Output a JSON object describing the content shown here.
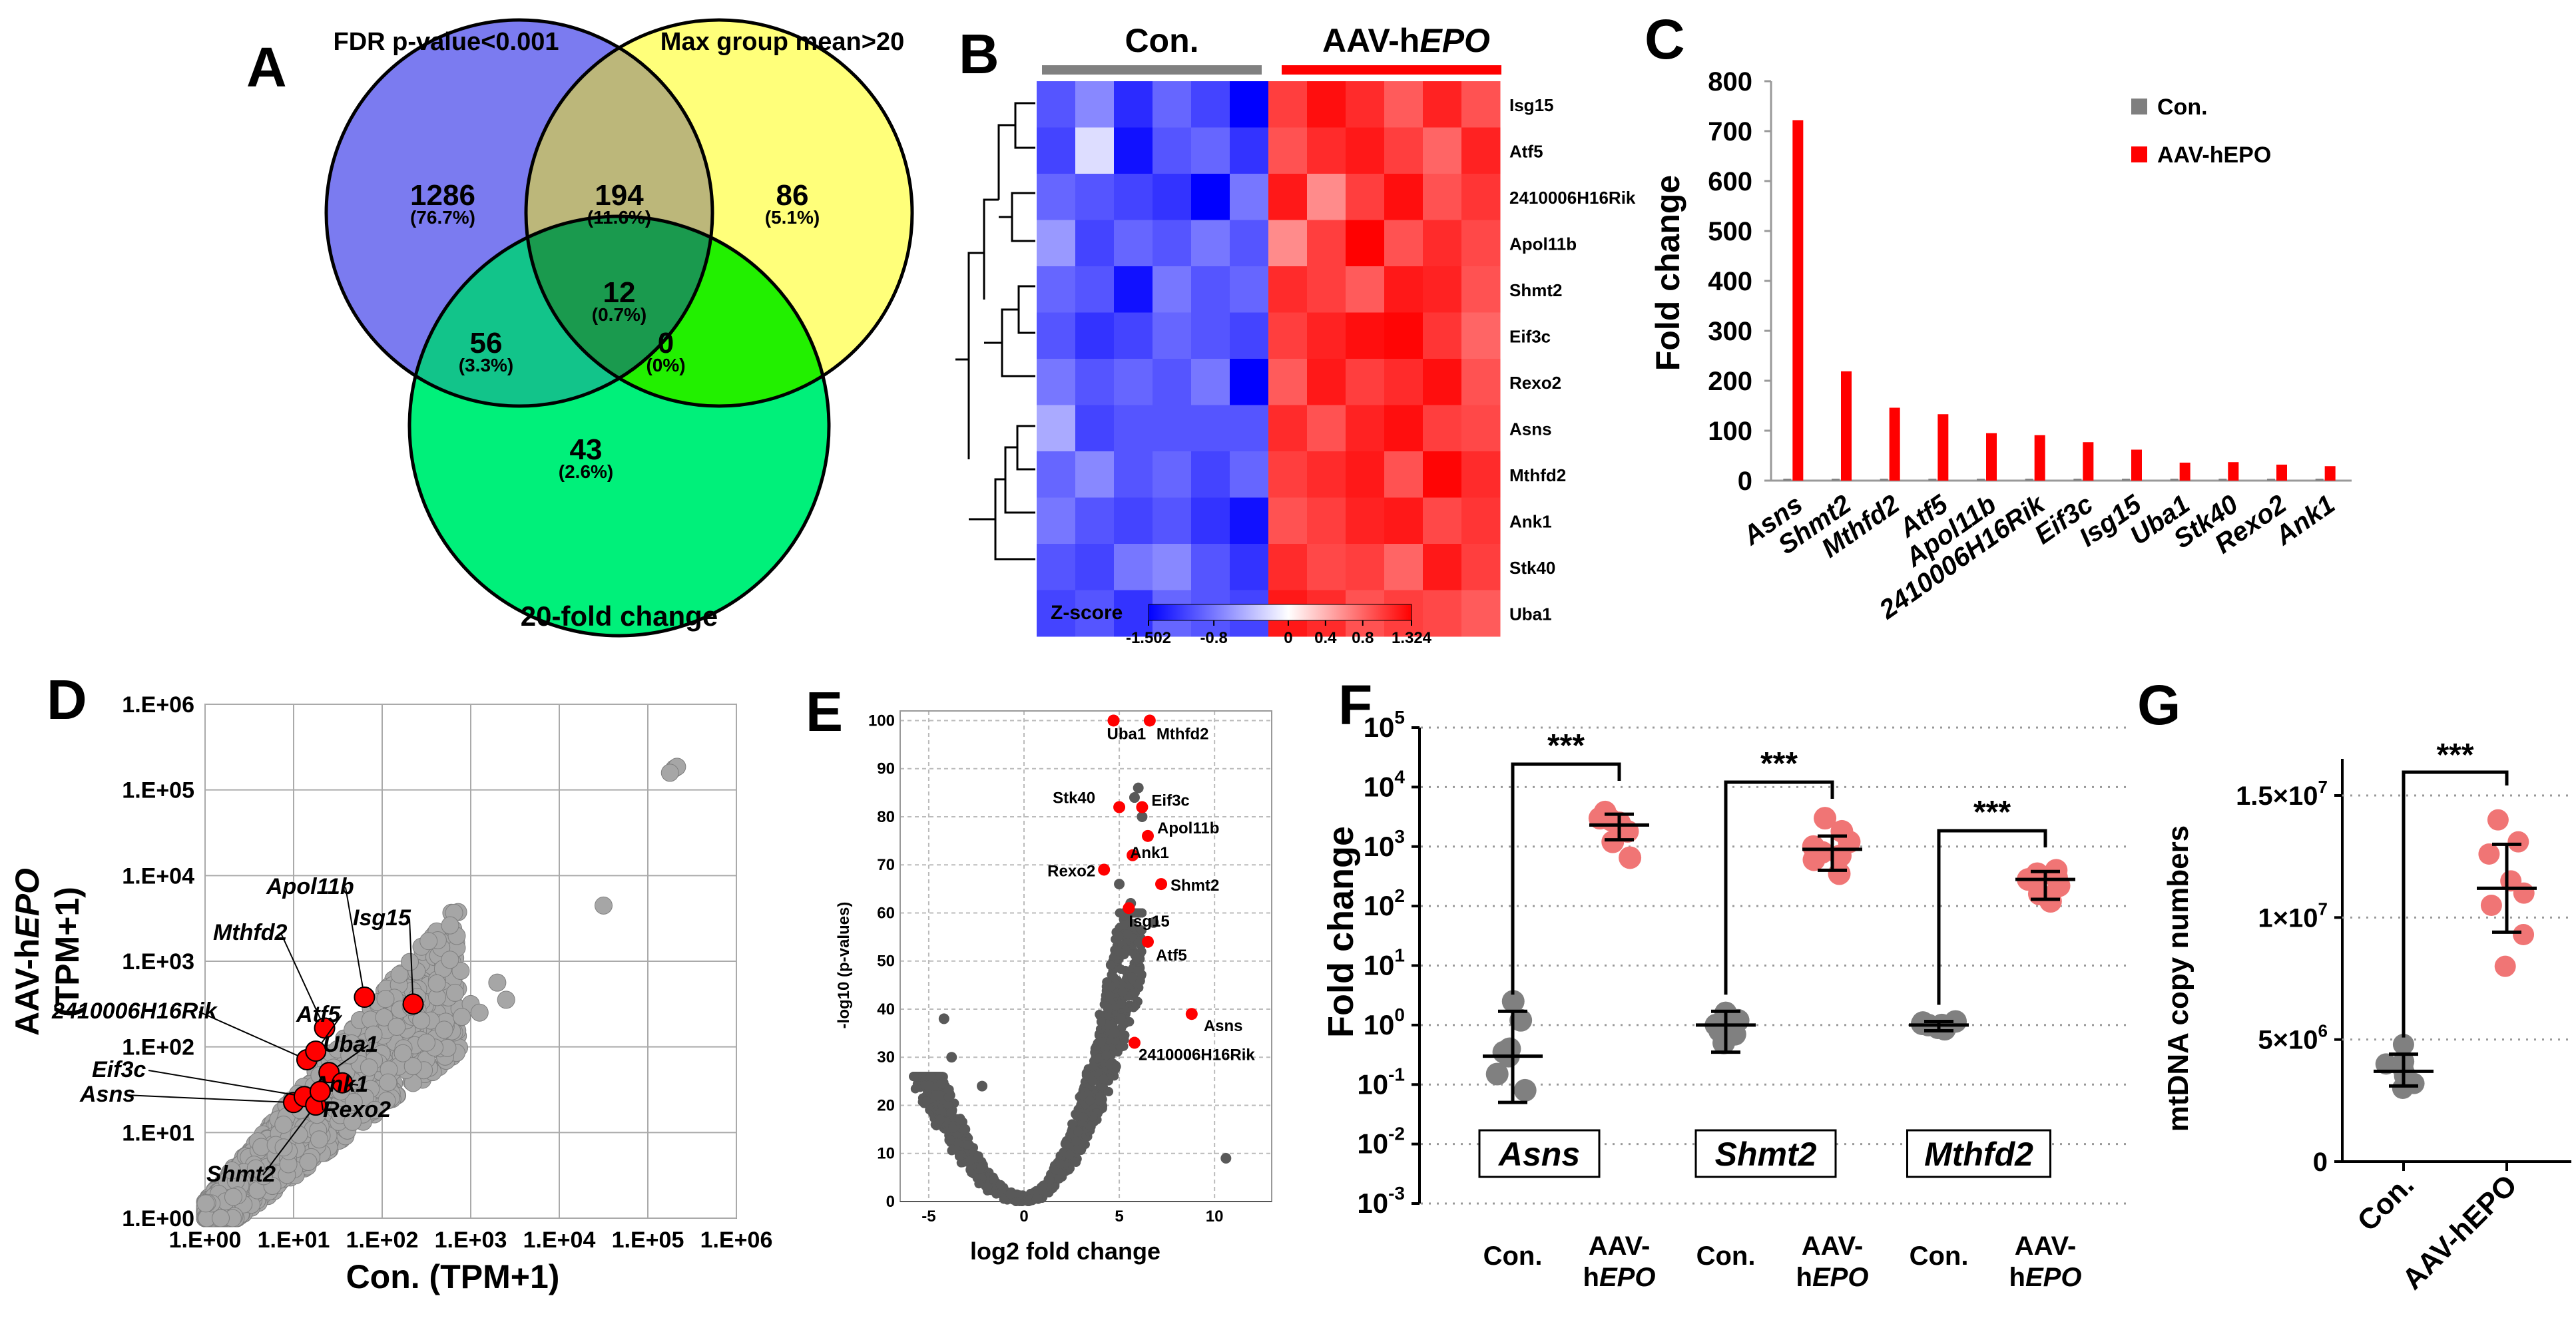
{
  "panels": {
    "A": "A",
    "B": "B",
    "C": "C",
    "D": "D",
    "E": "E",
    "F": "F",
    "G": "G"
  },
  "venn": {
    "set_labels": {
      "top_left": "FDR p-value<0.001",
      "top_right": "Max group mean>20",
      "bottom": "20-fold change"
    },
    "regions": [
      {
        "id": "fdr_only",
        "count": "1286",
        "pct": "(76.7%)"
      },
      {
        "id": "fdr_max",
        "count": "194",
        "pct": "(11.6%)"
      },
      {
        "id": "max_only",
        "count": "86",
        "pct": "(5.1%)"
      },
      {
        "id": "all_three",
        "count": "12",
        "pct": "(0.7%)"
      },
      {
        "id": "fdr_fold",
        "count": "56",
        "pct": "(3.3%)"
      },
      {
        "id": "max_fold",
        "count": "0",
        "pct": "(0%)"
      },
      {
        "id": "fold_only",
        "count": "43",
        "pct": "(2.6%)"
      }
    ],
    "colors": {
      "fdr": "#7b7bf0",
      "max": "#ffff7a",
      "fold": "#00f07a",
      "fdr_max": "#bcb77a",
      "fdr_fold": "#12c48a",
      "max_fold": "#22f000",
      "all": "#1a9a4e"
    }
  },
  "heatmap": {
    "group_labels": {
      "con": "Con.",
      "aav_prefix": "AAV-h",
      "aav_italic": "EPO"
    },
    "genes": [
      "Isg15",
      "Atf5",
      "2410006H16Rik",
      "Apol11b",
      "Shmt2",
      "Eif3c",
      "Rexo2",
      "Asns",
      "Mthfd2",
      "Ank1",
      "Stk40",
      "Uba1"
    ],
    "zscore_title": "Z-score",
    "zscore_ticks": [
      "-1.502",
      "-0.8",
      "0",
      "0.4",
      "0.8",
      "1.324"
    ],
    "zscore_tick_values": [
      -1.502,
      -0.8,
      0,
      0.4,
      0.8,
      1.324
    ],
    "zscore_range": [
      -1.502,
      1.324
    ],
    "values": [
      [
        -1.0,
        -0.7,
        -1.25,
        -0.9,
        -1.1,
        -1.5,
        1.0,
        1.25,
        1.1,
        0.85,
        1.15,
        0.9
      ],
      [
        -1.1,
        -0.2,
        -1.4,
        -1.0,
        -0.9,
        -1.2,
        0.9,
        1.1,
        1.2,
        1.0,
        0.8,
        1.15
      ],
      [
        -0.9,
        -1.0,
        -1.1,
        -1.2,
        -1.5,
        -0.8,
        1.2,
        0.6,
        1.0,
        1.25,
        0.9,
        1.05
      ],
      [
        -0.6,
        -1.1,
        -0.9,
        -1.0,
        -0.8,
        -1.0,
        0.6,
        1.0,
        1.32,
        0.9,
        1.1,
        0.95
      ],
      [
        -0.9,
        -1.0,
        -1.4,
        -0.8,
        -1.0,
        -0.9,
        1.1,
        1.0,
        0.85,
        1.2,
        1.15,
        0.9
      ],
      [
        -1.0,
        -1.2,
        -1.1,
        -0.9,
        -1.0,
        -1.1,
        1.0,
        1.15,
        1.25,
        1.3,
        1.05,
        0.8
      ],
      [
        -0.8,
        -1.0,
        -0.9,
        -1.0,
        -0.8,
        -1.5,
        0.85,
        1.2,
        1.0,
        1.1,
        1.25,
        0.9
      ],
      [
        -0.5,
        -1.1,
        -1.0,
        -1.0,
        -1.0,
        -1.0,
        1.1,
        0.9,
        1.15,
        1.25,
        1.0,
        0.95
      ],
      [
        -0.9,
        -0.7,
        -1.0,
        -0.9,
        -1.1,
        -0.9,
        1.0,
        1.1,
        1.2,
        0.9,
        1.3,
        1.1
      ],
      [
        -0.8,
        -1.0,
        -1.1,
        -1.0,
        -1.2,
        -1.4,
        0.9,
        1.0,
        1.15,
        1.2,
        0.95,
        1.05
      ],
      [
        -1.0,
        -1.1,
        -0.8,
        -0.7,
        -1.0,
        -1.2,
        1.1,
        0.95,
        1.0,
        0.8,
        1.2,
        1.0
      ],
      [
        -1.1,
        -1.0,
        -1.2,
        -0.9,
        -1.0,
        -1.1,
        1.2,
        1.1,
        0.9,
        1.0,
        0.95,
        0.85
      ]
    ]
  },
  "chart_data": [
    {
      "panel": "C",
      "type": "bar",
      "categories": [
        "Asns",
        "Shmt2",
        "Mthfd2",
        "Atf5",
        "Apol11b",
        "2410006H16Rik",
        "Eif3c",
        "Isg15",
        "Uba1",
        "Stk40",
        "Rexo2",
        "Ank1"
      ],
      "series": [
        {
          "name": "Con.",
          "color": "#7f7f7f",
          "values": [
            1,
            1,
            1,
            1,
            1,
            1,
            1,
            1,
            1,
            1,
            1,
            1
          ]
        },
        {
          "name": "AAV-hEPO",
          "color": "#ff0000",
          "values": [
            722,
            219,
            146,
            133,
            95,
            91,
            77,
            62,
            36,
            37,
            32,
            29
          ]
        }
      ],
      "ylabel": "Fold change",
      "ylim": [
        0,
        800
      ],
      "yticks": [
        "0",
        "100",
        "200",
        "300",
        "400",
        "500",
        "600",
        "700",
        "800"
      ],
      "legend": {
        "con": "Con.",
        "aav": "AAV-hEPO"
      }
    },
    {
      "panel": "D",
      "type": "scatter",
      "scale": "log",
      "xlabel": "Con. (TPM+1)",
      "ylabel_prefix": "AAV-h",
      "ylabel_italic": "EPO",
      "ylabel_suffix": "(TPM+1)",
      "ticks": [
        "1.E+00",
        "1.E+01",
        "1.E+02",
        "1.E+03",
        "1.E+04",
        "1.E+05",
        "1.E+06"
      ],
      "grey_points": [
        [
          3.3,
          2.75
        ],
        [
          3.4,
          2.55
        ],
        [
          4.5,
          3.65
        ],
        [
          5.3,
          5.25
        ],
        [
          5.33,
          5.27
        ],
        [
          5.25,
          5.2
        ],
        [
          3.0,
          2.5
        ],
        [
          2.9,
          2.35
        ],
        [
          2.7,
          2.2
        ],
        [
          2.5,
          2.05
        ],
        [
          3.1,
          2.4
        ]
      ],
      "highlight": [
        {
          "label": "Asns",
          "x": 1.0,
          "y": 1.35
        },
        {
          "label": "Eif3c",
          "x": 1.12,
          "y": 1.42
        },
        {
          "label": "2410006H16Rik",
          "x": 1.15,
          "y": 1.85
        },
        {
          "label": "Shmt2",
          "x": 1.25,
          "y": 1.32
        },
        {
          "label": "Mthfd2",
          "x": 1.35,
          "y": 2.22
        },
        {
          "label": "Apol11b",
          "x": 1.8,
          "y": 2.58
        },
        {
          "label": "Isg15",
          "x": 2.35,
          "y": 2.5
        },
        {
          "label": "Atf5",
          "x": 1.25,
          "y": 1.95
        },
        {
          "label": "Uba1",
          "x": 1.4,
          "y": 1.7
        },
        {
          "label": "Ank1",
          "x": 1.55,
          "y": 1.58
        },
        {
          "label": "Rexo2",
          "x": 1.3,
          "y": 1.48
        }
      ]
    },
    {
      "panel": "E",
      "type": "scatter",
      "xlabel": "log2 fold change",
      "ylabel": "-log10 (p-values)",
      "xticks": [
        "-5",
        "0",
        "5",
        "10"
      ],
      "xtick_values": [
        -5,
        0,
        5,
        10
      ],
      "yticks": [
        "0",
        "10",
        "20",
        "30",
        "40",
        "50",
        "60",
        "70",
        "80",
        "90",
        "100"
      ],
      "xlim": [
        -6.5,
        13
      ],
      "ylim": [
        0,
        102
      ],
      "grey_points": [
        [
          -4.2,
          38
        ],
        [
          -3.8,
          30
        ],
        [
          -5.0,
          24
        ],
        [
          -4.5,
          22
        ],
        [
          6.0,
          86
        ],
        [
          5.8,
          84
        ],
        [
          6.2,
          80
        ],
        [
          10.6,
          9
        ],
        [
          5.6,
          62
        ],
        [
          6.8,
          58
        ],
        [
          5.0,
          66
        ],
        [
          -2.2,
          24
        ],
        [
          -3.1,
          15
        ]
      ],
      "highlight": [
        {
          "label": "Uba1",
          "x": 4.7,
          "y": 100
        },
        {
          "label": "Mthfd2",
          "x": 6.6,
          "y": 100
        },
        {
          "label": "Stk40",
          "x": 5.0,
          "y": 82
        },
        {
          "label": "Eif3c",
          "x": 6.2,
          "y": 82
        },
        {
          "label": "Apol11b",
          "x": 6.5,
          "y": 76
        },
        {
          "label": "Ank1",
          "x": 5.7,
          "y": 72
        },
        {
          "label": "Rexo2",
          "x": 4.2,
          "y": 69
        },
        {
          "label": "Shmt2",
          "x": 7.2,
          "y": 66
        },
        {
          "label": "Isg15",
          "x": 5.5,
          "y": 61
        },
        {
          "label": "Atf5",
          "x": 6.5,
          "y": 54
        },
        {
          "label": "Asns",
          "x": 8.8,
          "y": 39
        },
        {
          "label": "2410006H16Rik",
          "x": 5.8,
          "y": 33
        }
      ]
    },
    {
      "panel": "F",
      "type": "scatter",
      "scale": "log",
      "ylabel": "Fold change",
      "yticks_exp": [
        "5",
        "4",
        "3",
        "2",
        "1",
        "0",
        "-1",
        "-2",
        "-3"
      ],
      "ylim_log10": [
        -3,
        5
      ],
      "groups": [
        {
          "gene": "Asns",
          "con": {
            "label": "Con.",
            "mean": 0.3,
            "sd_lo": 0.05,
            "sd_hi": 1.7,
            "points": [
              0.35,
              0.08,
              0.3,
              1.2,
              0.4,
              2.5,
              0.15
            ]
          },
          "aav": {
            "label_top": "AAV-",
            "label_bot_prefix": "h",
            "label_bot_italic": "EPO",
            "mean": 2300,
            "sd_lo": 1300,
            "sd_hi": 3500,
            "points": [
              1200,
              2500,
              3800,
              2100,
              3000,
              1800,
              2800,
              650
            ]
          },
          "sig": "***"
        },
        {
          "gene": "Shmt2",
          "con": {
            "label": "Con.",
            "mean": 1.0,
            "sd_lo": 0.35,
            "sd_hi": 1.7,
            "points": [
              1.0,
              0.7,
              1.6,
              1.2,
              0.5,
              1.3,
              0.8
            ]
          },
          "aav": {
            "label_top": "AAV-",
            "label_bot_prefix": "h",
            "label_bot_italic": "EPO",
            "mean": 900,
            "sd_lo": 400,
            "sd_hi": 1500,
            "points": [
              3000,
              1200,
              800,
              350,
              600,
              1800,
              1000,
              700
            ]
          },
          "sig": "***"
        },
        {
          "gene": "Mthfd2",
          "con": {
            "label": "Con.",
            "mean": 1.0,
            "sd_lo": 0.8,
            "sd_hi": 1.15,
            "points": [
              1.0,
              0.85,
              1.1,
              1.15,
              0.9,
              1.0,
              1.05
            ]
          },
          "aav": {
            "label_top": "AAV-",
            "label_bot_prefix": "h",
            "label_bot_italic": "EPO",
            "mean": 280,
            "sd_lo": 130,
            "sd_hi": 380,
            "points": [
              350,
              220,
              160,
              300,
              280,
              400,
              250,
              120
            ]
          },
          "sig": "***"
        }
      ]
    },
    {
      "panel": "G",
      "type": "scatter",
      "ylabel": "mtDNA copy numbers",
      "ytick_labels": [
        {
          "base": "0",
          "exp": ""
        },
        {
          "base": "5×10",
          "exp": "6"
        },
        {
          "base": "1×10",
          "exp": "7"
        },
        {
          "base": "1.5×10",
          "exp": "7"
        }
      ],
      "ytick_values": [
        0,
        5000000,
        10000000,
        15000000
      ],
      "ylim": [
        0,
        16500000
      ],
      "groups": [
        {
          "label": "Con.",
          "mean": 3700000,
          "sd_lo": 3100000,
          "sd_hi": 4400000,
          "points": [
            3000000,
            3500000,
            3800000,
            4100000,
            4800000,
            3200000,
            4000000,
            3600000
          ]
        },
        {
          "label": "AAV-hEPO",
          "mean": 11200000,
          "sd_lo": 9400000,
          "sd_hi": 13000000,
          "points": [
            8000000,
            9300000,
            10500000,
            11500000,
            12600000,
            13100000,
            14000000,
            11000000
          ]
        }
      ],
      "sig": "***"
    }
  ]
}
